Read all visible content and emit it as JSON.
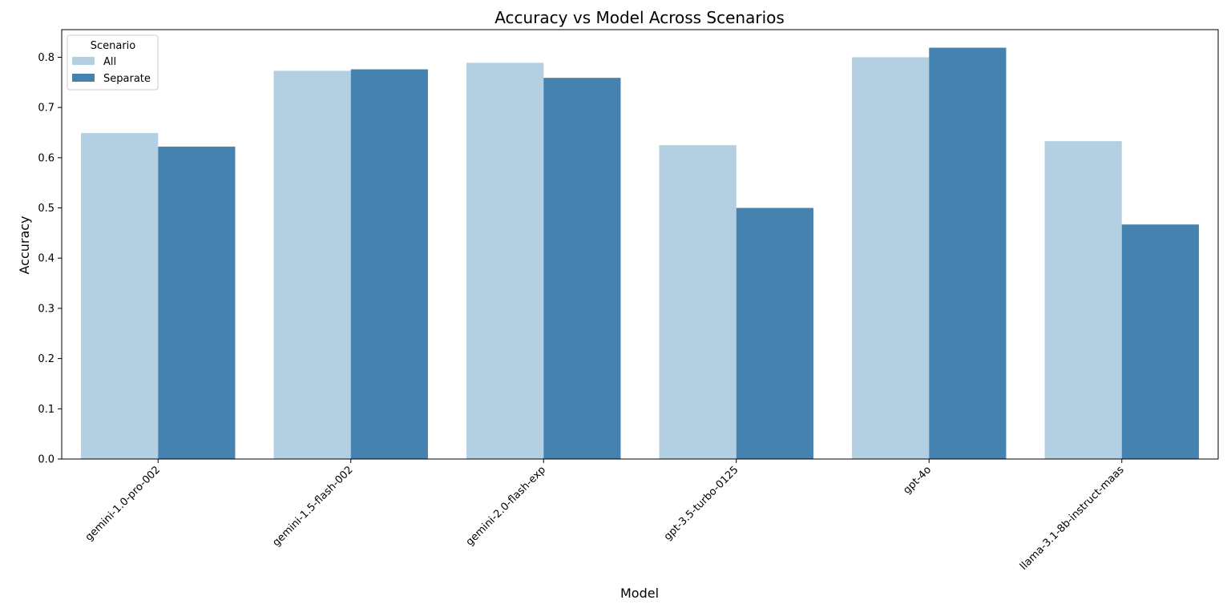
{
  "chart_data": {
    "type": "bar",
    "title": "Accuracy vs Model Across Scenarios",
    "xlabel": "Model",
    "ylabel": "Accuracy",
    "categories": [
      "gemini-1.0-pro-002",
      "gemini-1.5-flash-002",
      "gemini-2.0-flash-exp",
      "gpt-3.5-turbo-0125",
      "gpt-4o",
      "llama-3.1-8b-instruct-maas"
    ],
    "series": [
      {
        "name": "All",
        "color": "#b3cfe2",
        "values": [
          0.649,
          0.773,
          0.789,
          0.625,
          0.8,
          0.633
        ]
      },
      {
        "name": "Separate",
        "color": "#4682b0",
        "values": [
          0.622,
          0.776,
          0.759,
          0.5,
          0.819,
          0.467
        ]
      }
    ],
    "ylim": [
      0,
      0.855
    ],
    "yticks": [
      0.0,
      0.1,
      0.2,
      0.3,
      0.4,
      0.5,
      0.6,
      0.7,
      0.8
    ],
    "ytick_labels": [
      "0.0",
      "0.1",
      "0.2",
      "0.3",
      "0.4",
      "0.5",
      "0.6",
      "0.7",
      "0.8"
    ],
    "legend": {
      "title": "Scenario",
      "position": "upper-left"
    },
    "grid": false
  }
}
